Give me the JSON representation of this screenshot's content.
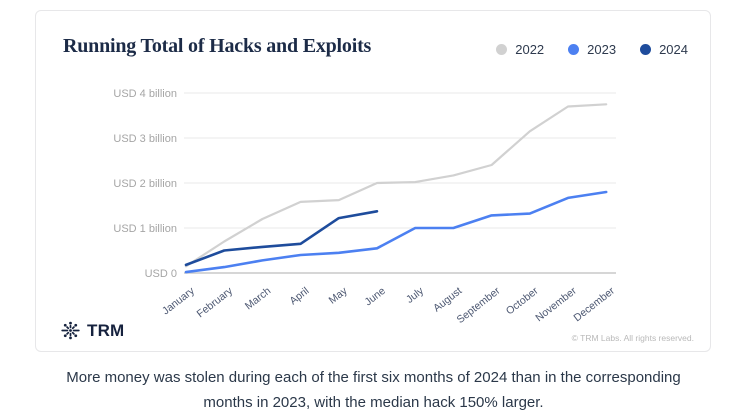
{
  "card": {
    "title": "Running Total of Hacks and Exploits",
    "footer": {
      "brand": "TRM",
      "copyright": "© TRM Labs. All rights reserved."
    }
  },
  "caption": {
    "line1": "More money was stolen during each of the first six months of 2024 than in the corresponding",
    "line2": "months in 2023, with the median hack 150% larger."
  },
  "colors": {
    "series_2022": "#d1d1d1",
    "series_2023": "#4c80f1",
    "series_2024": "#1e4c9c",
    "gridline": "#e8e8e8",
    "axis_line": "#c9c9c9",
    "y_tick_text": "#a5a5a5",
    "x_tick_text": "#4d5872",
    "title_text": "#1c2b47"
  },
  "chart_data": {
    "type": "line",
    "title": "Running Total of Hacks and Exploits",
    "unit": "USD billions, cumulative running total",
    "grid": true,
    "legend_position": "top-right",
    "ylim": [
      0,
      4.3
    ],
    "categories": [
      "January",
      "February",
      "March",
      "April",
      "May",
      "June",
      "July",
      "August",
      "September",
      "October",
      "November",
      "December"
    ],
    "y_ticks": [
      {
        "value": 0,
        "label": "USD 0"
      },
      {
        "value": 1,
        "label": "USD 1 billion"
      },
      {
        "value": 2,
        "label": "USD 2 billion"
      },
      {
        "value": 3,
        "label": "USD 3 billion"
      },
      {
        "value": 4,
        "label": "USD 4 billion"
      }
    ],
    "series": [
      {
        "name": "2022",
        "color": "#d1d1d1",
        "values": [
          0.15,
          0.7,
          1.2,
          1.58,
          1.62,
          2.0,
          2.02,
          2.17,
          2.4,
          3.15,
          3.7,
          3.75
        ]
      },
      {
        "name": "2023",
        "color": "#4c80f1",
        "values": [
          0.02,
          0.13,
          0.28,
          0.4,
          0.45,
          0.55,
          1.0,
          1.0,
          1.28,
          1.32,
          1.67,
          1.8
        ]
      },
      {
        "name": "2024",
        "color": "#1e4c9c",
        "values": [
          0.18,
          0.5,
          0.58,
          0.65,
          1.22,
          1.37
        ]
      }
    ]
  }
}
